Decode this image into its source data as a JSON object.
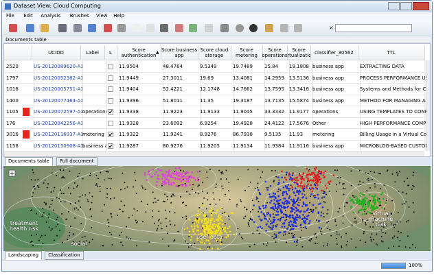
{
  "window": {
    "title": "Dataset View: Cloud Computing"
  },
  "menu": [
    "File",
    "Edit",
    "Analysis",
    "Brushes",
    "View",
    "Help"
  ],
  "panel": {
    "title": "Documents table"
  },
  "table": {
    "columns": [
      "UCIDD",
      "Label",
      "L",
      "Score authentication",
      "Score business app",
      "Score cloud storage",
      "Score metering",
      "Score operations",
      "Score virtualization",
      "classifier_30562",
      "TTL"
    ],
    "rows": [
      {
        "id": 2520,
        "flag": false,
        "cells": [
          "US-20120089620-A1",
          null,
          false,
          11.9504,
          48.4764,
          9.5349,
          19.7489,
          15.84,
          19.1808,
          "business app",
          "EXTRACTING DATA"
        ]
      },
      {
        "id": 1797,
        "flag": false,
        "cells": [
          "US-20120052382-A1",
          null,
          false,
          11.9449,
          27.3011,
          19.69,
          13.4081,
          14.2959,
          13.5136,
          "business app",
          "PROCESS PERFORMANCE USING"
        ]
      },
      {
        "id": 1018,
        "flag": false,
        "cells": [
          "US-20120005751-A1",
          null,
          false,
          11.9404,
          52.4221,
          12.1748,
          14.7662,
          13.7595,
          13.3416,
          "business app",
          "Systems and Methods for Creati"
        ]
      },
      {
        "id": 1400,
        "flag": false,
        "cells": [
          "US-20120077464-A1",
          null,
          false,
          11.9396,
          51.8011,
          11.35,
          19.3187,
          13.7135,
          15.5874,
          "business app",
          "METHOD FOR MANAGING A ST"
        ]
      },
      {
        "id": 1105,
        "flag": true,
        "cells": [
          "US-20120072597-A1",
          "operations",
          true,
          11.9338,
          11.9223,
          11.9133,
          11.9045,
          33.3332,
          11.9177,
          "operations",
          "USING TEMPLATES TO CONFIGU"
        ]
      },
      {
        "id": 176,
        "flag": false,
        "cells": [
          "US-20120042256-A1",
          null,
          false,
          11.9328,
          23.6092,
          6.9254,
          19.4928,
          24.4122,
          17.5676,
          "Other",
          "HIGH PERFORMANCE COMPUT"
        ]
      },
      {
        "id": 3016,
        "flag": true,
        "cells": [
          "US-20120116937-A1",
          "metering",
          true,
          11.9322,
          11.9241,
          8.9276,
          86.7938,
          9.5135,
          11.93,
          "metering",
          "Billing Usage in a Virtual Compu"
        ]
      },
      {
        "id": 1156,
        "flag": false,
        "cells": [
          "US-20120150908-A1",
          "business app",
          true,
          11.9287,
          80.9276,
          11.9205,
          11.9134,
          11.9384,
          11.9116,
          "business app",
          "MICROBLOG-BASED CUSTOMER"
        ]
      }
    ]
  },
  "tabs": [
    "Documents table",
    "Full document"
  ],
  "map": {
    "labels": [
      "treatment health risk",
      "social",
      "user data",
      "virtual machine disk"
    ]
  },
  "bottom_tabs": [
    "Landscaping",
    "Classification"
  ],
  "status": {
    "progress": "100%"
  }
}
